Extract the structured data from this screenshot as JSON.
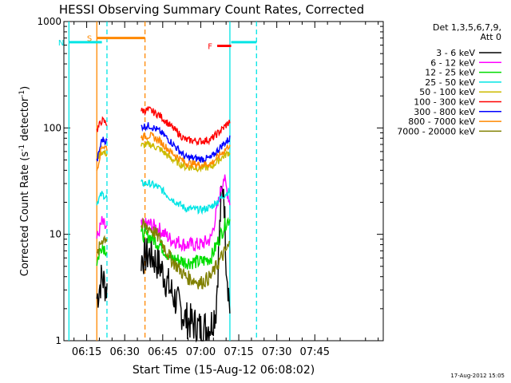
{
  "chart_data": {
    "type": "line",
    "title": "HESSI Observing Summary Count Rates, Corrected",
    "xlabel": "Start Time (15-Aug-12 06:08:02)",
    "ylabel_main": "Corrected Count Rate (s",
    "ylabel_sup1": "-1",
    "ylabel_mid": " detector",
    "ylabel_sup2": "-1",
    "ylabel_end": ")",
    "ylog": true,
    "ylim": [
      1,
      1000
    ],
    "yticks": [
      1,
      10,
      100,
      1000
    ],
    "ytick_labels": [
      "1",
      "10",
      "100",
      "1000"
    ],
    "xlim_min": [
      366,
      492
    ],
    "xticks_min": [
      375,
      390,
      405,
      420,
      435,
      450,
      465
    ],
    "xtick_labels": [
      "06:15",
      "06:30",
      "06:45",
      "07:00",
      "07:15",
      "07:30",
      "07:45"
    ],
    "footer_date": "17-Aug-2012 15:05",
    "legend": {
      "header": [
        "Det 1,3,5,6,7,9,",
        "Att 0"
      ],
      "placement": "right"
    },
    "gaps_min": [
      [
        368,
        379
      ],
      [
        383,
        396.5
      ],
      [
        431.5,
        436
      ]
    ],
    "segments": [
      [
        379,
        383
      ],
      [
        396.5,
        431.5
      ]
    ],
    "series": [
      {
        "name": "3 - 6 keV",
        "color": "#000000",
        "values": [
          [
            379,
            2.5
          ],
          [
            381,
            4
          ],
          [
            383,
            3
          ],
          [
            396.5,
            6
          ],
          [
            400,
            6.5
          ],
          [
            404,
            5
          ],
          [
            408,
            3
          ],
          [
            414,
            1.6
          ],
          [
            420,
            1.3
          ],
          [
            424,
            1.4
          ],
          [
            426,
            2
          ],
          [
            428,
            20
          ],
          [
            429,
            30
          ],
          [
            430,
            6
          ],
          [
            431.5,
            2
          ]
        ]
      },
      {
        "name": "6 - 12 keV",
        "color": "#ff00ff",
        "values": [
          [
            379,
            9
          ],
          [
            381,
            13
          ],
          [
            383,
            11
          ],
          [
            396.5,
            12
          ],
          [
            400,
            12.5
          ],
          [
            404,
            11
          ],
          [
            408,
            9
          ],
          [
            414,
            8
          ],
          [
            420,
            8
          ],
          [
            424,
            9
          ],
          [
            427,
            20
          ],
          [
            429,
            35
          ],
          [
            431.5,
            20
          ]
        ]
      },
      {
        "name": "12 - 25 keV",
        "color": "#00dd00",
        "values": [
          [
            379,
            5.5
          ],
          [
            381,
            8
          ],
          [
            383,
            7
          ],
          [
            396.5,
            10
          ],
          [
            400,
            9.5
          ],
          [
            404,
            8
          ],
          [
            408,
            6
          ],
          [
            414,
            5.5
          ],
          [
            420,
            5.5
          ],
          [
            424,
            6
          ],
          [
            428,
            10
          ],
          [
            430,
            13
          ],
          [
            431.5,
            14
          ]
        ]
      },
      {
        "name": "25 - 50 keV",
        "color": "#00e5e5",
        "values": [
          [
            379,
            20
          ],
          [
            381,
            24
          ],
          [
            383,
            22
          ],
          [
            396.5,
            30
          ],
          [
            400,
            30
          ],
          [
            404,
            27
          ],
          [
            408,
            22
          ],
          [
            414,
            17.5
          ],
          [
            420,
            17
          ],
          [
            424,
            18
          ],
          [
            428,
            22
          ],
          [
            431.5,
            26
          ]
        ]
      },
      {
        "name": "50 - 100 keV",
        "color": "#ccbb00",
        "values": [
          [
            379,
            52
          ],
          [
            381,
            60
          ],
          [
            383,
            57
          ],
          [
            396.5,
            68
          ],
          [
            400,
            70
          ],
          [
            404,
            63
          ],
          [
            408,
            52
          ],
          [
            414,
            43
          ],
          [
            420,
            42
          ],
          [
            424,
            43
          ],
          [
            428,
            52
          ],
          [
            431.5,
            60
          ]
        ]
      },
      {
        "name": "100 - 300 keV",
        "color": "#ff0000",
        "values": [
          [
            379,
            95
          ],
          [
            381,
            118
          ],
          [
            383,
            110
          ],
          [
            396.5,
            145
          ],
          [
            400,
            147
          ],
          [
            404,
            130
          ],
          [
            408,
            105
          ],
          [
            414,
            77
          ],
          [
            420,
            75
          ],
          [
            424,
            78
          ],
          [
            428,
            95
          ],
          [
            431.5,
            115
          ]
        ]
      },
      {
        "name": "300 - 800 keV",
        "color": "#0000ff",
        "values": [
          [
            379,
            48
          ],
          [
            381,
            78
          ],
          [
            383,
            75
          ],
          [
            396.5,
            103
          ],
          [
            400,
            105
          ],
          [
            404,
            92
          ],
          [
            408,
            75
          ],
          [
            414,
            53
          ],
          [
            420,
            51
          ],
          [
            424,
            52
          ],
          [
            428,
            67
          ],
          [
            431.5,
            80
          ]
        ]
      },
      {
        "name": "800 - 7000 keV",
        "color": "#ff8800",
        "values": [
          [
            379,
            40
          ],
          [
            381,
            68
          ],
          [
            383,
            65
          ],
          [
            396.5,
            82
          ],
          [
            400,
            85
          ],
          [
            404,
            75
          ],
          [
            408,
            60
          ],
          [
            414,
            47
          ],
          [
            420,
            45
          ],
          [
            424,
            46
          ],
          [
            428,
            57
          ],
          [
            431.5,
            70
          ]
        ]
      },
      {
        "name": "7000 - 20000 keV",
        "color": "#808000",
        "values": [
          [
            379,
            6
          ],
          [
            381,
            9
          ],
          [
            383,
            9.5
          ],
          [
            396.5,
            12
          ],
          [
            400,
            11.5
          ],
          [
            404,
            9
          ],
          [
            408,
            6
          ],
          [
            414,
            4
          ],
          [
            420,
            3.5
          ],
          [
            424,
            4
          ],
          [
            428,
            6
          ],
          [
            431.5,
            8
          ]
        ]
      }
    ],
    "flags": [
      {
        "label": "S",
        "color": "#ff8800",
        "x_min": [
          379,
          398
        ],
        "y": 700
      },
      {
        "label": "N",
        "color": "#00e5e5",
        "x_min": [
          368,
          381
        ],
        "y": 640
      },
      {
        "label": "F",
        "color": "#ff0000",
        "x_min": [
          426.5,
          432
        ],
        "y": 590
      },
      {
        "label": "",
        "color": "#00e5e5",
        "x_min": [
          432,
          442
        ],
        "y": 640
      }
    ],
    "vlines": [
      {
        "x_min": 379,
        "color": "#ff8800",
        "dashed": false
      },
      {
        "x_min": 383,
        "color": "#00e5e5",
        "dashed": true
      },
      {
        "x_min": 398,
        "color": "#ff8800",
        "dashed": true
      },
      {
        "x_min": 368,
        "color": "#00e5e5",
        "dashed": false
      },
      {
        "x_min": 431.5,
        "color": "#00e5e5",
        "dashed": false
      },
      {
        "x_min": 442,
        "color": "#00e5e5",
        "dashed": true
      }
    ]
  }
}
